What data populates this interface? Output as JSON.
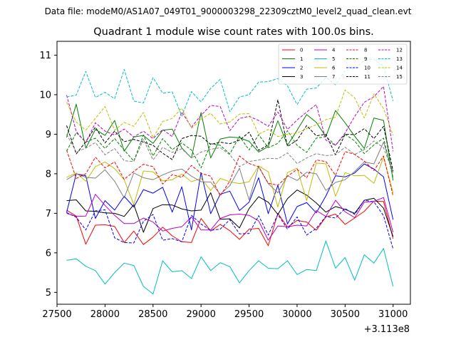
{
  "chart_data": {
    "type": "line",
    "suptitle": "Data file: modeM0/AS1A07_049T01_9000003298_22309cztM0_level2_quad_clean.evt",
    "title": "Quadrant 1 module wise count rates with 100.0s bins.",
    "xlabel": "",
    "ylabel": "",
    "x_offset_label": "+3.113e8",
    "xlim": [
      27500,
      31180
    ],
    "ylim": [
      4.7,
      11.35
    ],
    "xticks": [
      27500,
      28000,
      28500,
      29000,
      29500,
      30000,
      30500,
      31000
    ],
    "xtick_labels": [
      "27500",
      "28000",
      "28500",
      "29000",
      "29500",
      "30000",
      "30500",
      "31000"
    ],
    "yticks": [
      5,
      6,
      7,
      8,
      9,
      10,
      11
    ],
    "ytick_labels": [
      "5",
      "6",
      "7",
      "8",
      "9",
      "10",
      "11"
    ],
    "x": [
      27600,
      27700,
      27800,
      27900,
      28000,
      28100,
      28200,
      28300,
      28400,
      28500,
      28600,
      28700,
      28800,
      28900,
      29000,
      29100,
      29200,
      29300,
      29400,
      29500,
      29600,
      29700,
      29800,
      29900,
      30000,
      30100,
      30200,
      30300,
      30400,
      30500,
      30600,
      30700,
      30800,
      30900,
      31000
    ],
    "legend_position": "top-right",
    "series": [
      {
        "name": "0",
        "color": "#ff0000",
        "dash": "solid",
        "values": [
          7.08,
          6.93,
          6.22,
          6.7,
          6.71,
          6.67,
          6.26,
          6.55,
          6.21,
          6.4,
          6.65,
          6.43,
          6.28,
          6.26,
          6.87,
          6.55,
          6.72,
          6.56,
          6.34,
          6.6,
          6.62,
          6.18,
          7.0,
          6.65,
          6.82,
          6.78,
          6.57,
          6.91,
          6.98,
          6.72,
          6.88,
          7.05,
          7.31,
          7.3,
          6.36
        ]
      },
      {
        "name": "1",
        "color": "#008000",
        "dash": "solid",
        "values": [
          8.92,
          9.76,
          8.65,
          9.12,
          8.97,
          9.35,
          8.57,
          8.93,
          8.97,
          8.77,
          9.1,
          9.13,
          8.65,
          8.4,
          9.55,
          8.4,
          8.88,
          8.93,
          8.91,
          8.82,
          8.55,
          8.69,
          9.34,
          8.72,
          9.1,
          9.5,
          9.3,
          8.94,
          9.6,
          9.29,
          8.95,
          8.64,
          9.41,
          9.35,
          7.83
        ]
      },
      {
        "name": "2",
        "color": "#0000ff",
        "dash": "solid",
        "values": [
          7.02,
          8.0,
          7.95,
          6.87,
          7.32,
          7.08,
          7.43,
          7.16,
          7.6,
          7.51,
          7.66,
          7.03,
          7.67,
          6.58,
          8.03,
          6.99,
          7.48,
          7.56,
          7.07,
          7.28,
          7.9,
          6.99,
          7.71,
          6.73,
          7.17,
          7.27,
          7.01,
          7.44,
          7.95,
          7.92,
          8.02,
          8.25,
          8.12,
          7.92,
          6.84
        ]
      },
      {
        "name": "3",
        "color": "#000000",
        "dash": "solid",
        "values": [
          7.32,
          7.34,
          7.06,
          7.05,
          7.01,
          7.0,
          6.92,
          7.22,
          6.52,
          7.12,
          7.22,
          7.21,
          7.11,
          7.06,
          7.08,
          7.52,
          6.85,
          6.86,
          6.63,
          7.12,
          7.42,
          7.28,
          6.97,
          7.37,
          7.59,
          7.46,
          7.26,
          7.03,
          7.17,
          7.1,
          7.0,
          7.33,
          7.38,
          7.13,
          6.41
        ]
      },
      {
        "name": "4",
        "color": "#bf00bf",
        "dash": "solid",
        "values": [
          7.0,
          6.92,
          6.93,
          7.48,
          7.2,
          6.95,
          6.74,
          6.74,
          6.88,
          6.78,
          6.55,
          6.62,
          6.66,
          6.91,
          6.58,
          6.58,
          6.87,
          6.96,
          6.98,
          6.95,
          6.81,
          6.32,
          6.68,
          6.66,
          6.7,
          6.68,
          7.07,
          6.92,
          7.33,
          7.04,
          6.89,
          7.28,
          7.3,
          7.4,
          6.52
        ]
      },
      {
        "name": "5",
        "color": "#00bfbf",
        "dash": "solid",
        "values": [
          5.81,
          5.85,
          5.66,
          5.55,
          5.21,
          5.5,
          5.74,
          5.68,
          5.15,
          4.96,
          5.8,
          5.52,
          5.55,
          5.35,
          5.9,
          5.55,
          5.75,
          5.65,
          5.24,
          5.55,
          5.8,
          5.61,
          5.6,
          5.8,
          5.45,
          5.58,
          5.55,
          6.3,
          5.61,
          5.88,
          5.31,
          5.95,
          5.74,
          6.11,
          5.15
        ]
      },
      {
        "name": "6",
        "color": "#bfbf00",
        "dash": "solid",
        "values": [
          7.91,
          8.02,
          7.81,
          8.18,
          8.3,
          8.13,
          7.85,
          7.22,
          8.07,
          8.05,
          7.82,
          7.85,
          7.99,
          7.8,
          7.88,
          7.58,
          7.88,
          7.8,
          7.75,
          7.8,
          8.2,
          8.05,
          7.16,
          8.03,
          8.14,
          7.32,
          8.27,
          8.25,
          7.43,
          8.03,
          7.95,
          7.96,
          7.76,
          8.42,
          7.52
        ]
      },
      {
        "name": "7",
        "color": "#808080",
        "dash": "solid",
        "values": [
          7.85,
          8.0,
          7.91,
          7.89,
          8.1,
          7.81,
          7.39,
          8.02,
          7.9,
          7.85,
          7.97,
          8.07,
          8.12,
          7.94,
          7.8,
          7.79,
          7.48,
          7.7,
          8.14,
          7.34,
          8.18,
          7.75,
          7.52,
          7.95,
          7.83,
          8.04,
          8.0,
          7.58,
          7.78,
          7.85,
          8.06,
          8.3,
          8.25,
          8.8,
          8.04
        ]
      },
      {
        "name": "8",
        "color": "#ff0000",
        "dash": "dashed",
        "values": [
          8.6,
          7.88,
          8.0,
          8.42,
          8.15,
          8.3,
          7.86,
          8.06,
          8.24,
          8.18,
          7.74,
          7.98,
          7.91,
          8.21,
          8.01,
          7.94,
          7.44,
          7.82,
          8.45,
          8.26,
          8.18,
          7.76,
          7.71,
          7.94,
          8.11,
          7.9,
          8.35,
          8.31,
          7.96,
          8.56,
          8.49,
          8.32,
          8.08,
          8.45,
          7.44
        ]
      },
      {
        "name": "9",
        "color": "#008000",
        "dash": "dashed",
        "values": [
          8.57,
          9.04,
          8.8,
          8.9,
          8.64,
          8.89,
          8.6,
          8.32,
          8.98,
          8.45,
          8.89,
          8.61,
          8.78,
          8.6,
          8.15,
          8.76,
          8.72,
          8.5,
          8.95,
          8.6,
          8.99,
          8.66,
          8.77,
          9.09,
          8.72,
          8.54,
          8.9,
          8.94,
          8.72,
          9.0,
          8.83,
          8.51,
          8.73,
          8.9,
          7.9
        ]
      },
      {
        "name": "10",
        "color": "#0000ff",
        "dash": "dashed",
        "values": [
          7.02,
          6.9,
          6.58,
          7.06,
          7.09,
          6.38,
          6.26,
          6.25,
          6.8,
          6.97,
          6.32,
          6.36,
          6.28,
          6.95,
          6.73,
          6.57,
          6.6,
          6.84,
          6.48,
          6.49,
          6.94,
          6.45,
          6.97,
          6.6,
          6.91,
          6.45,
          6.62,
          6.92,
          6.88,
          7.12,
          6.97,
          7.33,
          7.29,
          6.94,
          6.1
        ]
      },
      {
        "name": "11",
        "color": "#000000",
        "dash": "dashed",
        "values": [
          9.22,
          8.5,
          8.81,
          9.18,
          8.78,
          9.08,
          8.81,
          8.87,
          8.8,
          8.72,
          8.52,
          8.36,
          8.89,
          8.97,
          8.95,
          8.74,
          8.8,
          8.76,
          8.85,
          9.05,
          8.59,
          8.73,
          9.87,
          8.69,
          8.85,
          9.22,
          8.96,
          9.0,
          8.48,
          9.0,
          8.99,
          9.14,
          8.89,
          9.2,
          8.07
        ]
      },
      {
        "name": "12",
        "color": "#bf00bf",
        "dash": "dashed",
        "values": [
          9.99,
          9.07,
          8.79,
          9.29,
          9.08,
          8.98,
          9.13,
          8.93,
          9.08,
          8.89,
          9.12,
          8.94,
          9.56,
          9.18,
          9.48,
          9.73,
          9.7,
          9.09,
          9.4,
          9.45,
          9.35,
          9.2,
          9.56,
          9.12,
          9.36,
          9.56,
          9.75,
          8.85,
          8.72,
          9.03,
          9.45,
          9.81,
          9.95,
          10.21,
          8.57
        ]
      },
      {
        "name": "13",
        "color": "#00bfbf",
        "dash": "dashed",
        "values": [
          9.94,
          9.99,
          10.59,
          9.93,
          10.06,
          9.9,
          10.64,
          9.84,
          9.79,
          10.43,
          10.04,
          10.07,
          9.46,
          10.08,
          9.82,
          10.16,
          10.39,
          9.57,
          9.94,
          10.0,
          10.32,
          10.33,
          10.41,
          10.22,
          9.75,
          10.14,
          10.17,
          10.43,
          10.25,
          10.61,
          10.66,
          10.86,
          10.9,
          10.72,
          9.84
        ]
      },
      {
        "name": "14",
        "color": "#bfbf00",
        "dash": "dashed",
        "values": [
          9.81,
          9.31,
          9.1,
          9.4,
          9.7,
          9.1,
          9.3,
          9.2,
          9.55,
          8.91,
          9.32,
          9.4,
          9.66,
          9.15,
          9.38,
          9.53,
          9.26,
          9.31,
          9.51,
          9.52,
          9.0,
          9.12,
          8.94,
          9.0,
          9.03,
          9.14,
          9.24,
          9.37,
          9.43,
          10.12,
          9.92,
          9.41,
          10.02,
          9.65,
          8.97
        ]
      },
      {
        "name": "15",
        "color": "#808080",
        "dash": "dashed",
        "values": [
          9.0,
          8.55,
          8.65,
          8.79,
          8.48,
          8.64,
          8.33,
          8.31,
          8.87,
          8.35,
          8.67,
          8.54,
          8.63,
          8.4,
          8.55,
          8.62,
          8.66,
          8.48,
          8.18,
          8.31,
          8.35,
          8.39,
          8.38,
          8.53,
          8.26,
          8.4,
          8.51,
          8.46,
          8.48,
          8.67,
          8.49,
          8.61,
          8.83,
          8.66,
          8.03
        ]
      }
    ]
  }
}
